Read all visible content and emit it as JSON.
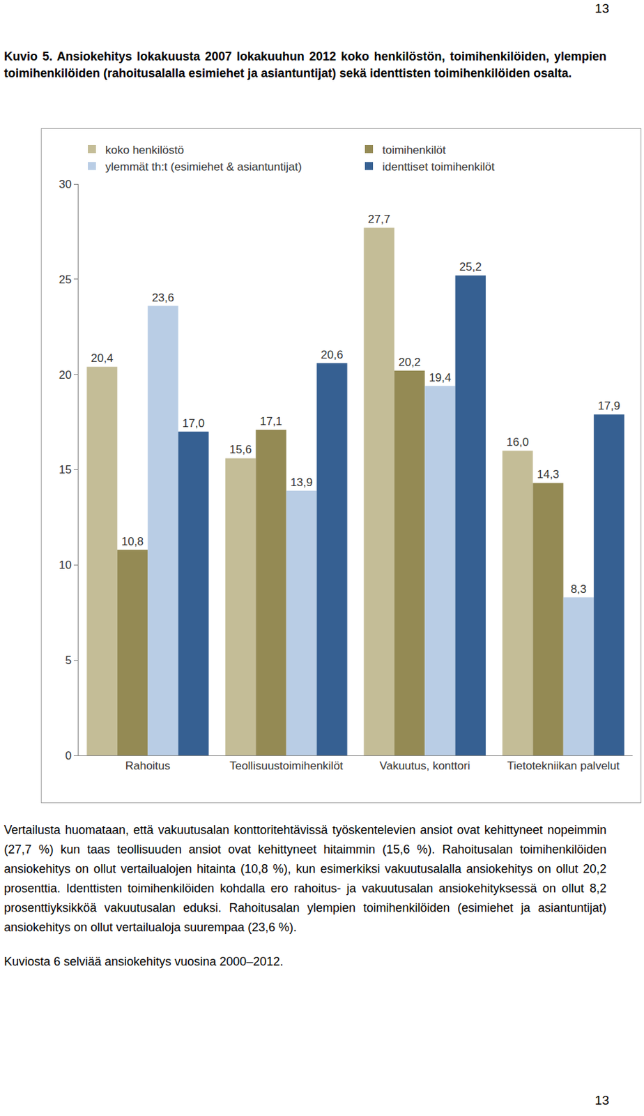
{
  "page_number": "13",
  "caption": "Kuvio 5. Ansiokehitys lokakuusta 2007 lokakuuhun 2012 koko henkilöstön, toimihenkilöiden, ylempien toimihenkilöiden (rahoitusalalla esimiehet ja asiantuntijat) sekä identtisten toimihenkilöiden osalta.",
  "chart_data": {
    "type": "bar",
    "categories": [
      "Rahoitus",
      "Teollisuustoimihenkilöt",
      "Vakuutus, konttori",
      "Tietotekniikan palvelut"
    ],
    "series": [
      {
        "name": "koko henkilöstö",
        "color": "#c4bd97",
        "values": [
          20.4,
          15.6,
          27.7,
          16.0
        ],
        "value_labels": [
          "20,4",
          "15,6",
          "27,7",
          "16,0"
        ]
      },
      {
        "name": "toimihenkilöt",
        "color": "#948a54",
        "values": [
          10.8,
          17.1,
          20.2,
          14.3
        ],
        "value_labels": [
          "10,8",
          "17,1",
          "20,2",
          "14,3"
        ]
      },
      {
        "name": "ylemmät th:t (esimiehet & asiantuntijat)",
        "color": "#b9cde5",
        "values": [
          23.6,
          13.9,
          19.4,
          8.3
        ],
        "value_labels": [
          "23,6",
          "13,9",
          "19,4",
          "8,3"
        ]
      },
      {
        "name": "identtiset toimihenkilöt",
        "color": "#366092",
        "values": [
          17.0,
          20.6,
          25.2,
          17.9
        ],
        "value_labels": [
          "17,0",
          "20,6",
          "25,2",
          "17,9"
        ]
      }
    ],
    "ylim": [
      0,
      30
    ],
    "yticks": [
      0,
      5,
      10,
      15,
      20,
      25,
      30
    ],
    "grid": false,
    "legend": "top",
    "data_labels": true
  },
  "paragraphs": [
    "Vertailusta huomataan, että vakuutusalan konttoritehtävissä työskentelevien ansiot ovat kehittyneet nopeimmin (27,7 %) kun taas teollisuuden ansiot ovat kehittyneet hitaimmin (15,6 %). Rahoitusalan toimihenkilöiden ansiokehitys on ollut vertailualojen hitainta (10,8 %), kun esimerkiksi vakuutusalalla ansiokehitys on ollut 20,2 prosenttia. Identtisten toimihenkilöiden kohdalla ero rahoitus- ja vakuutusalan ansiokehityksessä on ollut 8,2 prosenttiyksikköä vakuutusalan eduksi. Rahoitusalan ylempien toimihenkilöiden (esimiehet ja asiantuntijat) ansiokehitys on ollut vertailualoja suurempaa (23,6 %).",
    "Kuviosta 6 selviää ansiokehitys vuosina 2000–2012."
  ]
}
